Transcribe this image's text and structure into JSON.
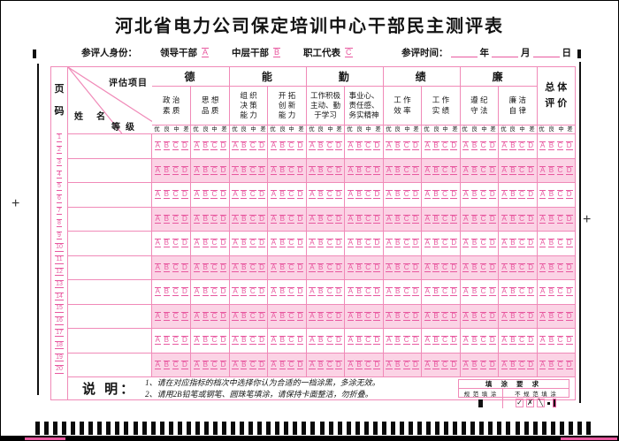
{
  "page": {
    "title": "河北省电力公司保定培训中心干部民主测评表",
    "plus_mark": "+"
  },
  "identity": {
    "label": "参评人身份：",
    "options": [
      {
        "label": "领导干部",
        "bubble": "A"
      },
      {
        "label": "中层干部",
        "bubble": "B"
      },
      {
        "label": "职工代表",
        "bubble": "C"
      }
    ],
    "time": {
      "label": "参评时间：",
      "units": [
        "年",
        "月",
        "日"
      ]
    }
  },
  "table": {
    "page_col": {
      "header": [
        "页",
        "码"
      ],
      "numbers": [
        1,
        2,
        3,
        4,
        5,
        6,
        7,
        8,
        9,
        10,
        11,
        12,
        13,
        14,
        15,
        16,
        17,
        18,
        19,
        20
      ]
    },
    "corner": {
      "top_right": "评估项目",
      "bottom_left": "姓名",
      "bottom_right": "等级"
    },
    "categories": [
      {
        "name": "德",
        "subs": [
          "政 治\n素 质",
          "思 想\n品 质"
        ]
      },
      {
        "name": "能",
        "subs": [
          "组 织\n决 策\n能 力",
          "开 拓\n创 新\n能 力"
        ]
      },
      {
        "name": "勤",
        "subs": [
          "工作积极\n主动、勤\n于学习",
          "事业心、\n责任感、\n务实精神"
        ]
      },
      {
        "name": "绩",
        "subs": [
          "工 作\n效 率",
          "工 作\n实 绩"
        ]
      },
      {
        "name": "廉",
        "subs": [
          "遵 纪\n守 法",
          "廉 洁\n自 律"
        ]
      }
    ],
    "overall": "总 体\n评 价",
    "grade_labels": [
      "优",
      "良",
      "中",
      "差"
    ],
    "bubble_letters": [
      "A",
      "B",
      "C",
      "D"
    ],
    "row_count": 10,
    "group_count": 11
  },
  "notes": {
    "label": "说 明：",
    "items": [
      "1、请在对应指标的档次中选择你认为合适的一档涂黑，多涂无效。",
      "2、请用2B铅笔或钢笔、圆珠笔填涂，请保持卡面整洁，勿折叠。"
    ]
  },
  "fill_requirements": {
    "title": "填 涂 要 求",
    "good_label": "规 范 填 涂",
    "bad_label": "不 规 范 填 涂",
    "bad_marks": [
      "✓",
      "✗",
      "╲",
      "dot",
      "bar"
    ]
  },
  "timing_track": {
    "count": 63
  },
  "colors": {
    "pink_border": "#f08ab8",
    "pink_band": "#fbd3e5",
    "pink_ink": "#e8589f",
    "black_ink": "#141414"
  }
}
